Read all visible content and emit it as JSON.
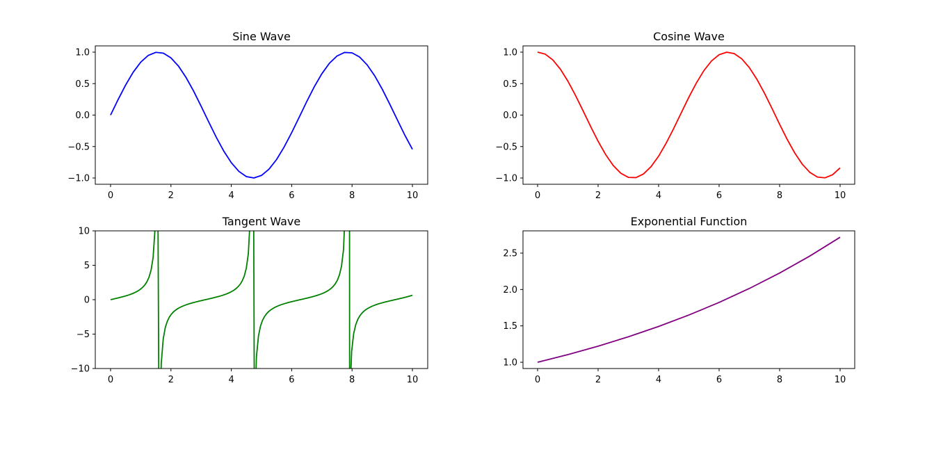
{
  "chart_data": [
    {
      "type": "line",
      "title": "Sine Wave",
      "function": "sin",
      "xlim": [
        0,
        10
      ],
      "ylim": [
        -1.0,
        1.0
      ],
      "xticks": [
        "0",
        "2",
        "4",
        "6",
        "8",
        "10"
      ],
      "yticks": [
        "−1.0",
        "−0.5",
        "0.0",
        "0.5",
        "1.0"
      ],
      "color": "#0000ff",
      "x": [
        0,
        0.25,
        0.5,
        0.75,
        1,
        1.25,
        1.5,
        1.75,
        2,
        2.25,
        2.5,
        2.75,
        3,
        3.25,
        3.5,
        3.75,
        4,
        4.25,
        4.5,
        4.75,
        5,
        5.25,
        5.5,
        5.75,
        6,
        6.25,
        6.5,
        6.75,
        7,
        7.25,
        7.5,
        7.75,
        8,
        8.25,
        8.5,
        8.75,
        9,
        9.25,
        9.5,
        9.75,
        10
      ],
      "y": [
        0,
        0.247,
        0.479,
        0.682,
        0.841,
        0.949,
        0.997,
        0.984,
        0.909,
        0.778,
        0.598,
        0.382,
        0.141,
        -0.108,
        -0.351,
        -0.572,
        -0.757,
        -0.895,
        -0.978,
        -0.999,
        -0.959,
        -0.859,
        -0.706,
        -0.508,
        -0.279,
        -0.033,
        0.215,
        0.451,
        0.657,
        0.823,
        0.938,
        0.995,
        0.989,
        0.923,
        0.798,
        0.625,
        0.412,
        0.173,
        -0.075,
        -0.32,
        -0.544
      ]
    },
    {
      "type": "line",
      "title": "Cosine Wave",
      "function": "cos",
      "xlim": [
        0,
        10
      ],
      "ylim": [
        -1.0,
        1.0
      ],
      "xticks": [
        "0",
        "2",
        "4",
        "6",
        "8",
        "10"
      ],
      "yticks": [
        "−1.0",
        "−0.5",
        "0.0",
        "0.5",
        "1.0"
      ],
      "color": "#ff0000",
      "x": [
        0,
        0.25,
        0.5,
        0.75,
        1,
        1.25,
        1.5,
        1.75,
        2,
        2.25,
        2.5,
        2.75,
        3,
        3.25,
        3.5,
        3.75,
        4,
        4.25,
        4.5,
        4.75,
        5,
        5.25,
        5.5,
        5.75,
        6,
        6.25,
        6.5,
        6.75,
        7,
        7.25,
        7.5,
        7.75,
        8,
        8.25,
        8.5,
        8.75,
        9,
        9.25,
        9.5,
        9.75,
        10
      ],
      "y": [
        1,
        0.969,
        0.878,
        0.732,
        0.54,
        0.315,
        0.071,
        -0.178,
        -0.416,
        -0.628,
        -0.801,
        -0.924,
        -0.99,
        -0.994,
        -0.936,
        -0.82,
        -0.654,
        -0.446,
        -0.211,
        0.037,
        0.284,
        0.512,
        0.709,
        0.861,
        0.96,
        0.999,
        0.977,
        0.893,
        0.754,
        0.568,
        0.347,
        0.104,
        -0.146,
        -0.386,
        -0.602,
        -0.781,
        -0.911,
        -0.985,
        -0.997,
        -0.948,
        -0.839
      ]
    },
    {
      "type": "line",
      "title": "Tangent Wave",
      "function": "tan",
      "xlim": [
        0,
        10
      ],
      "ylim": [
        -10,
        10
      ],
      "xticks": [
        "0",
        "2",
        "4",
        "6",
        "8",
        "10"
      ],
      "yticks": [
        "−10",
        "−5",
        "0",
        "5",
        "10"
      ],
      "color": "#008000",
      "samples": 150
    },
    {
      "type": "line",
      "title": "Exponential Function",
      "function": "exp(x/10)",
      "xlim": [
        0,
        10
      ],
      "ylim": [
        1.0,
        2.718
      ],
      "xticks": [
        "0",
        "2",
        "4",
        "6",
        "8",
        "10"
      ],
      "yticks": [
        "1.0",
        "1.5",
        "2.0",
        "2.5"
      ],
      "color": "#800080",
      "x": [
        0,
        1,
        2,
        3,
        4,
        5,
        6,
        7,
        8,
        9,
        10
      ],
      "y": [
        1.0,
        1.105,
        1.221,
        1.35,
        1.492,
        1.649,
        1.822,
        2.014,
        2.226,
        2.46,
        2.718
      ]
    }
  ]
}
